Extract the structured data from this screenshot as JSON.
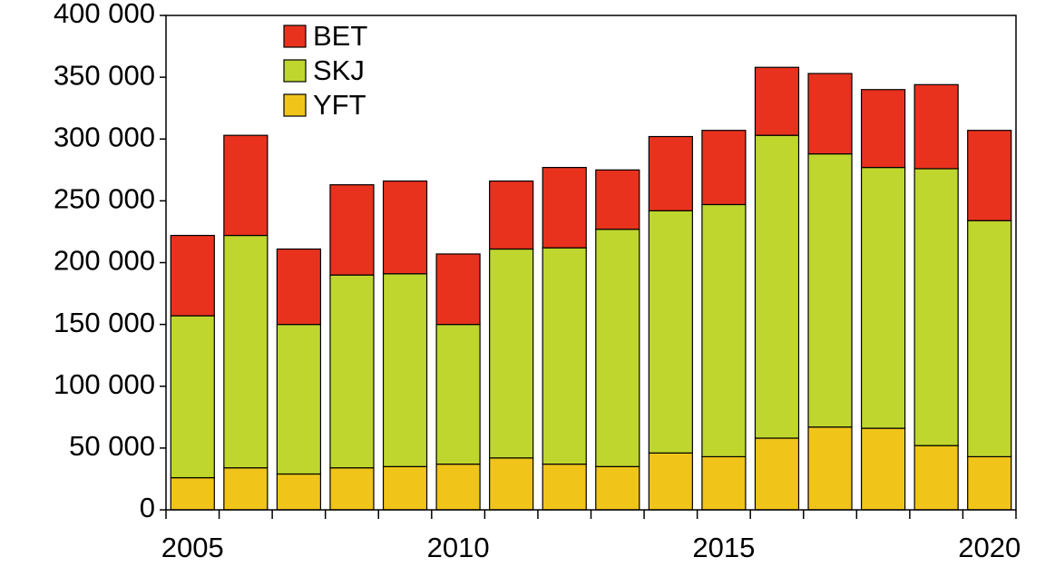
{
  "chart_data": {
    "type": "stacked-bar",
    "categories": [
      "2005",
      null,
      null,
      null,
      null,
      "2010",
      null,
      null,
      null,
      null,
      "2015",
      null,
      null,
      null,
      null,
      "2020"
    ],
    "series": [
      {
        "name": "YFT",
        "color": "#f0c419",
        "values": [
          26000,
          34000,
          29000,
          34000,
          35000,
          37000,
          42000,
          37000,
          35000,
          46000,
          43000,
          58000,
          67000,
          66000,
          52000,
          43000
        ]
      },
      {
        "name": "SKJ",
        "color": "#bfd62e",
        "values": [
          131000,
          188000,
          121000,
          156000,
          156000,
          113000,
          169000,
          175000,
          192000,
          196000,
          204000,
          245000,
          221000,
          211000,
          224000,
          191000
        ]
      },
      {
        "name": "BET",
        "color": "#e8321e",
        "values": [
          65000,
          81000,
          61000,
          73000,
          75000,
          57000,
          55000,
          65000,
          48000,
          60000,
          60000,
          55000,
          65000,
          63000,
          68000,
          73000
        ]
      }
    ],
    "ylim": [
      0,
      400000
    ],
    "yticks": [
      0,
      {
        "value": 50000,
        "label": "50 000"
      },
      {
        "value": 100000,
        "label": "100 000"
      },
      {
        "value": 150000,
        "label": "150 000"
      },
      {
        "value": 200000,
        "label": "200 000"
      },
      {
        "value": 250000,
        "label": "250 000"
      },
      {
        "value": 300000,
        "label": "300 000"
      },
      {
        "value": 350000,
        "label": "350 000"
      },
      {
        "value": 400000,
        "label": "400 000"
      }
    ],
    "legend": "upper-left"
  }
}
